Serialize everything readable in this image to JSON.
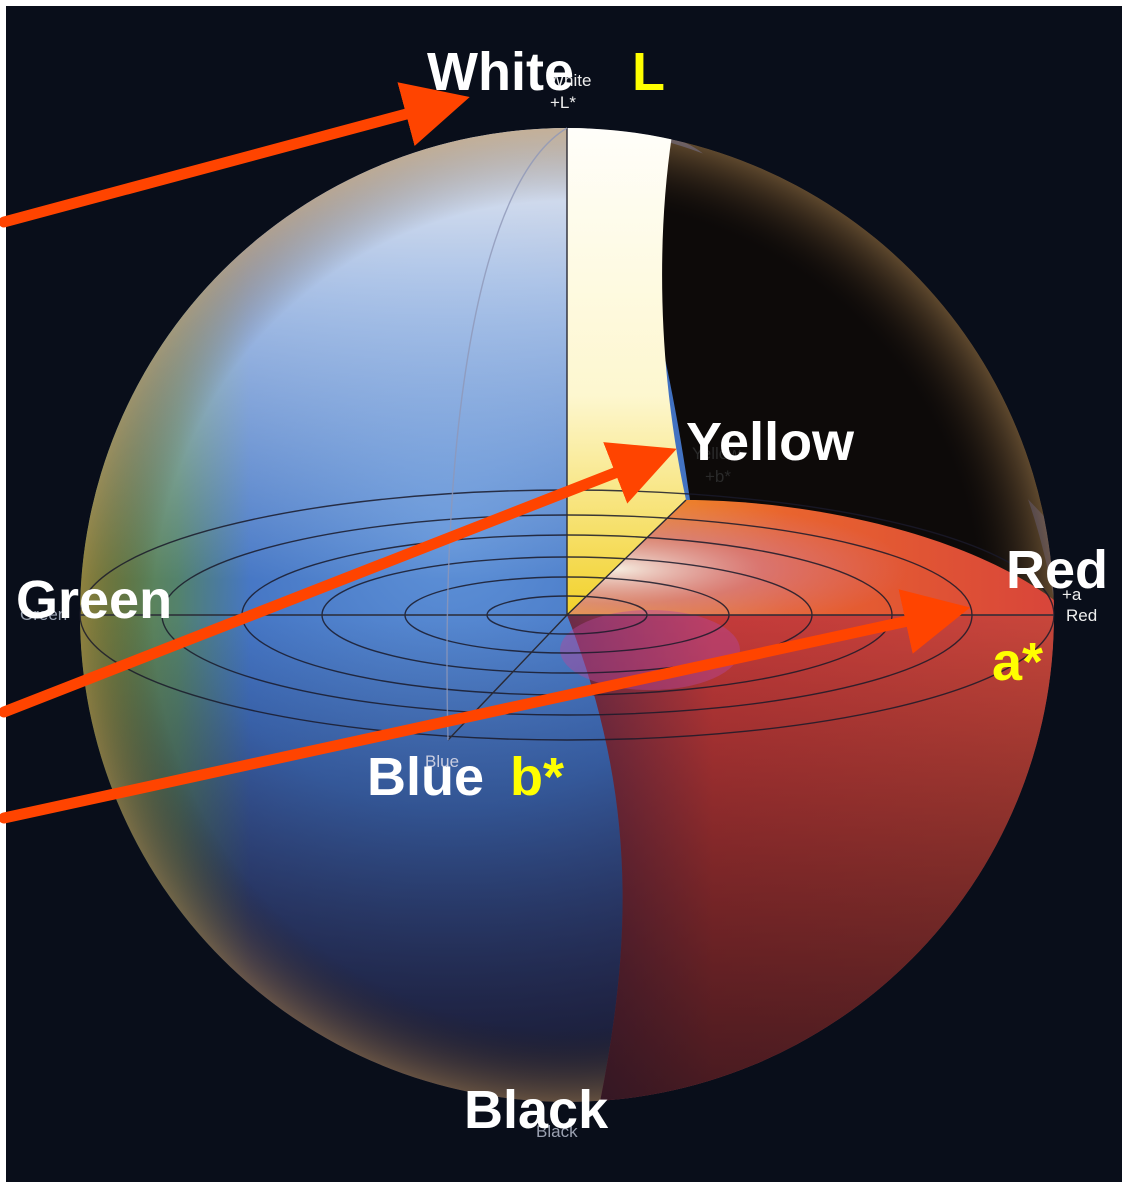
{
  "labels": {
    "white": "White",
    "L": "L",
    "yellow": "Yellow",
    "green": "Green",
    "red": "Red",
    "a_star": "a*",
    "blue": "Blue",
    "b_star": "b*",
    "black": "Black"
  },
  "small_labels": {
    "white": "White",
    "plus_L": "+L*",
    "yellow": "Yellow",
    "plus_b": "+b*",
    "green": "Green",
    "plus_a": "+a",
    "red": "Red",
    "blue": "Blue",
    "black": "Black"
  },
  "colors": {
    "arrow": "#ff4400",
    "label_white": "#ffffff",
    "label_yellow": "#ffff00",
    "background": "#070b14"
  }
}
